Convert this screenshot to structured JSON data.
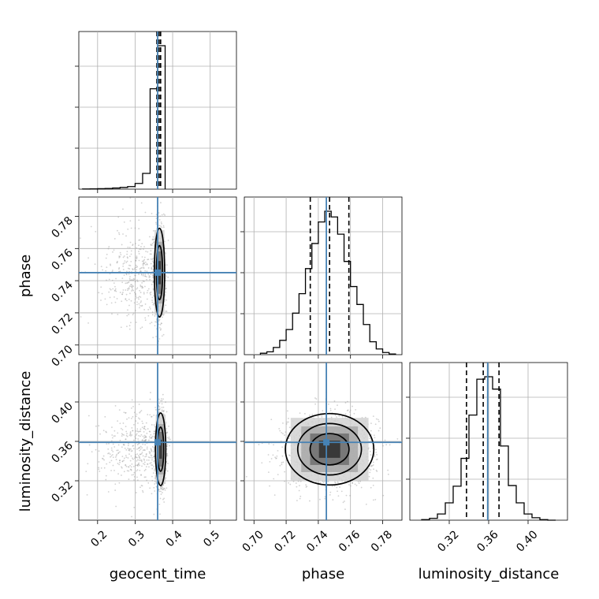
{
  "figure": {
    "parameters": [
      "geocent_time",
      "phase",
      "luminosity_distance"
    ],
    "injection_color": "#4682b4",
    "hist_color": "#000000",
    "sample_color": "#9a9a9a"
  },
  "chart_data": {
    "type": "corner",
    "grid": true,
    "parameters": [
      {
        "name": "geocent_time",
        "label": "geocent_time",
        "range": [
          0.15,
          0.57
        ],
        "ticks": [
          0.2,
          0.3,
          0.4,
          0.5
        ],
        "true_value": 0.36,
        "quantiles": [
          0.358,
          0.364,
          0.368
        ]
      },
      {
        "name": "phase",
        "label": "phase",
        "range": [
          0.694,
          0.792
        ],
        "ticks": [
          0.7,
          0.72,
          0.74,
          0.76,
          0.78
        ],
        "true_value": 0.745,
        "quantiles": [
          0.735,
          0.747,
          0.759
        ]
      },
      {
        "name": "luminosity_distance",
        "label": "luminosity_distance",
        "range": [
          0.28,
          0.44
        ],
        "ticks": [
          0.32,
          0.36,
          0.4
        ],
        "true_value": 0.359,
        "quantiles": [
          0.3375,
          0.3545,
          0.3705
        ]
      }
    ],
    "histograms": [
      {
        "parameter": "geocent_time",
        "bin_edges": [
          0.16,
          0.18,
          0.2,
          0.22,
          0.24,
          0.26,
          0.28,
          0.3,
          0.32,
          0.34,
          0.36,
          0.38
        ],
        "counts": [
          1,
          2,
          3,
          5,
          8,
          12,
          18,
          40,
          110,
          700,
          1000
        ]
      },
      {
        "parameter": "phase",
        "bin_edges": [
          0.704,
          0.708,
          0.712,
          0.716,
          0.72,
          0.724,
          0.728,
          0.732,
          0.736,
          0.74,
          0.744,
          0.748,
          0.752,
          0.756,
          0.76,
          0.764,
          0.768,
          0.772,
          0.776,
          0.78,
          0.784,
          0.788
        ],
        "counts": [
          2,
          4,
          10,
          20,
          35,
          58,
          85,
          120,
          155,
          185,
          200,
          192,
          168,
          130,
          95,
          70,
          42,
          18,
          8,
          3,
          1
        ]
      },
      {
        "parameter": "luminosity_distance",
        "bin_edges": [
          0.292,
          0.3,
          0.308,
          0.316,
          0.324,
          0.332,
          0.34,
          0.348,
          0.356,
          0.364,
          0.372,
          0.38,
          0.388,
          0.396,
          0.404,
          0.412,
          0.42,
          0.428
        ],
        "counts": [
          1,
          3,
          10,
          28,
          55,
          100,
          170,
          228,
          232,
          212,
          120,
          56,
          28,
          10,
          4,
          1,
          0
        ]
      }
    ],
    "pairs": [
      {
        "x": "geocent_time",
        "y": "phase",
        "center": [
          0.365,
          0.745
        ],
        "spread": [
          0.006,
          0.012
        ],
        "contours": [
          "inner",
          "outer"
        ]
      },
      {
        "x": "geocent_time",
        "y": "luminosity_distance",
        "center": [
          0.368,
          0.352
        ],
        "spread": [
          0.006,
          0.016
        ],
        "contours": [
          "inner",
          "outer"
        ]
      },
      {
        "x": "phase",
        "y": "luminosity_distance",
        "center": [
          0.747,
          0.352
        ],
        "spread": [
          0.011,
          0.0145
        ],
        "contours": [
          "inner",
          "middle",
          "outer"
        ]
      }
    ]
  }
}
